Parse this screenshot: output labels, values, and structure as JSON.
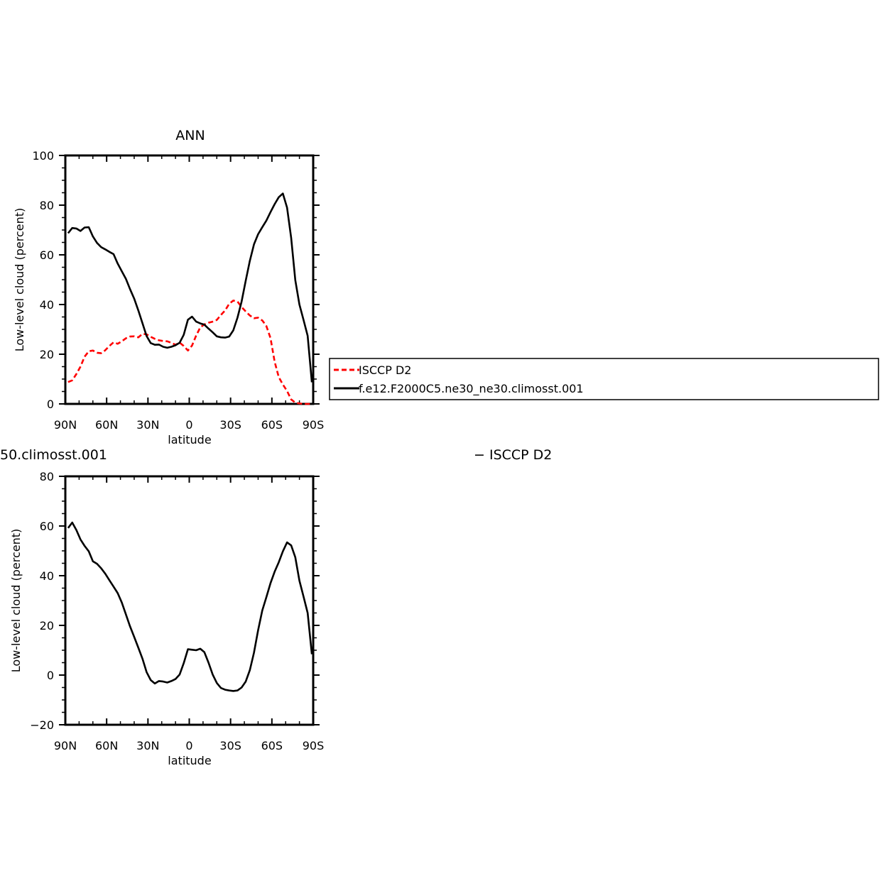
{
  "chart_data": [
    {
      "type": "line",
      "title": "ANN",
      "xlabel": "latitude",
      "ylabel": "Low-level cloud (percent)",
      "xlim": [
        90,
        -90
      ],
      "ylim": [
        0,
        100
      ],
      "xticks": [
        {
          "value": 90,
          "label": "90N"
        },
        {
          "value": 60,
          "label": "60N"
        },
        {
          "value": 30,
          "label": "30N"
        },
        {
          "value": 0,
          "label": "0"
        },
        {
          "value": -30,
          "label": "30S"
        },
        {
          "value": -60,
          "label": "60S"
        },
        {
          "value": -90,
          "label": "90S"
        }
      ],
      "yticks": [
        0,
        20,
        40,
        60,
        80,
        100
      ],
      "grid": false,
      "legend_position": "right",
      "series": [
        {
          "name": "ISCCP D2",
          "color": "#ff0000",
          "dash": "dashed",
          "x": [
            88,
            85,
            82,
            79,
            76,
            73,
            70,
            67,
            64,
            61,
            58,
            55,
            52,
            49,
            46,
            43,
            40,
            37,
            34,
            31,
            28,
            25,
            22,
            19,
            16,
            13,
            10,
            7,
            4,
            1,
            -2,
            -5,
            -8,
            -11,
            -14,
            -17,
            -20,
            -23,
            -26,
            -29,
            -32,
            -35,
            -38,
            -41,
            -44,
            -47,
            -50,
            -53,
            -56,
            -59,
            -62,
            -65,
            -68,
            -71,
            -74,
            -77,
            -80,
            -83,
            -86,
            -89
          ],
          "values": [
            8.8,
            9.5,
            12,
            15,
            19,
            21.2,
            21.5,
            20.6,
            20.4,
            21.6,
            23.3,
            24.8,
            24.2,
            25.2,
            26.4,
            27.1,
            27.2,
            26.8,
            28.2,
            28.0,
            27.0,
            26.2,
            25.6,
            25.3,
            25.2,
            24.6,
            23.8,
            24.7,
            23.3,
            21.5,
            23.5,
            27.5,
            30.8,
            32.0,
            32.7,
            33.1,
            33.8,
            35.8,
            37.6,
            40.3,
            41.6,
            41.2,
            39.0,
            37.2,
            35.6,
            34.5,
            34.7,
            33.6,
            31.3,
            26.5,
            17,
            10.8,
            7.8,
            5.2,
            1.8,
            0.5,
            0.2,
            0,
            0,
            0
          ]
        },
        {
          "name": "f.e12.F2000C5.ne30_ne30.climosst.001",
          "color": "#000000",
          "dash": "solid",
          "x": [
            88,
            85,
            82,
            79,
            76,
            73,
            70,
            67,
            64,
            61,
            58,
            55,
            52,
            49,
            46,
            43,
            40,
            37,
            34,
            31,
            28,
            25,
            22,
            19,
            16,
            13,
            10,
            7,
            4,
            1,
            -2,
            -5,
            -8,
            -11,
            -14,
            -17,
            -20,
            -23,
            -26,
            -29,
            -32,
            -35,
            -38,
            -41,
            -44,
            -47,
            -50,
            -53,
            -56,
            -59,
            -62,
            -65,
            -68,
            -71,
            -74,
            -77,
            -80,
            -83,
            -86,
            -89
          ],
          "values": [
            68.7,
            70.8,
            70.6,
            69.6,
            71.0,
            71.1,
            67.4,
            64.8,
            63.1,
            62.2,
            61.2,
            60.3,
            56.5,
            53.4,
            50.3,
            46.2,
            42.4,
            37.6,
            32.5,
            27.3,
            24.5,
            23.8,
            23.9,
            23.0,
            22.6,
            23.0,
            23.6,
            24.6,
            27.8,
            33.9,
            35.1,
            33.1,
            32.4,
            31.9,
            30.3,
            28.8,
            27.2,
            26.8,
            26.7,
            27.1,
            29.6,
            34.7,
            41.2,
            49.6,
            57.6,
            64.2,
            68.3,
            71.1,
            73.8,
            77.2,
            80.4,
            83.2,
            84.7,
            79.0,
            66.8,
            49.8,
            40.0,
            33.8,
            27.4,
            8.7
          ]
        }
      ]
    },
    {
      "type": "line",
      "title": "50.climosst.001",
      "title_right": "− ISCCP D2",
      "xlabel": "latitude",
      "ylabel": "Low-level cloud (percent)",
      "xlim": [
        90,
        -90
      ],
      "ylim": [
        -20,
        80
      ],
      "xticks": [
        {
          "value": 90,
          "label": "90N"
        },
        {
          "value": 60,
          "label": "60N"
        },
        {
          "value": 30,
          "label": "30N"
        },
        {
          "value": 0,
          "label": "0"
        },
        {
          "value": -30,
          "label": "30S"
        },
        {
          "value": -60,
          "label": "60S"
        },
        {
          "value": -90,
          "label": "90S"
        }
      ],
      "yticks": [
        -20,
        0,
        20,
        40,
        60,
        80
      ],
      "grid": false,
      "series": [
        {
          "color": "#000000",
          "dash": "solid",
          "x": [
            88,
            85,
            82,
            79,
            76,
            73,
            70,
            67,
            64,
            61,
            58,
            55,
            52,
            49,
            46,
            43,
            40,
            37,
            34,
            31,
            28,
            25,
            22,
            19,
            16,
            13,
            10,
            7,
            4,
            1,
            -2,
            -5,
            -8,
            -11,
            -14,
            -17,
            -20,
            -23,
            -26,
            -29,
            -32,
            -35,
            -38,
            -41,
            -44,
            -47,
            -50,
            -53,
            -56,
            -59,
            -62,
            -65,
            -68,
            -71,
            -74,
            -77,
            -80,
            -83,
            -86,
            -89
          ],
          "values": [
            59.2,
            61.4,
            58.4,
            54.6,
            52.0,
            49.8,
            45.8,
            44.8,
            43.0,
            40.8,
            38.2,
            35.6,
            33.0,
            29.2,
            24.4,
            19.6,
            15.4,
            11.0,
            6.6,
            1.2,
            -2.0,
            -3.4,
            -2.4,
            -2.6,
            -3.0,
            -2.4,
            -1.6,
            0.2,
            4.8,
            10.4,
            10.2,
            10.0,
            10.6,
            9.2,
            5.0,
            0.2,
            -3.2,
            -5.2,
            -5.9,
            -6.2,
            -6.4,
            -6.2,
            -5.0,
            -2.6,
            2.0,
            9.0,
            18.0,
            26.0,
            31.4,
            37.0,
            41.6,
            45.4,
            49.8,
            53.4,
            52.2,
            47.4,
            38.0,
            31.6,
            25.0,
            8.4
          ]
        }
      ]
    }
  ]
}
